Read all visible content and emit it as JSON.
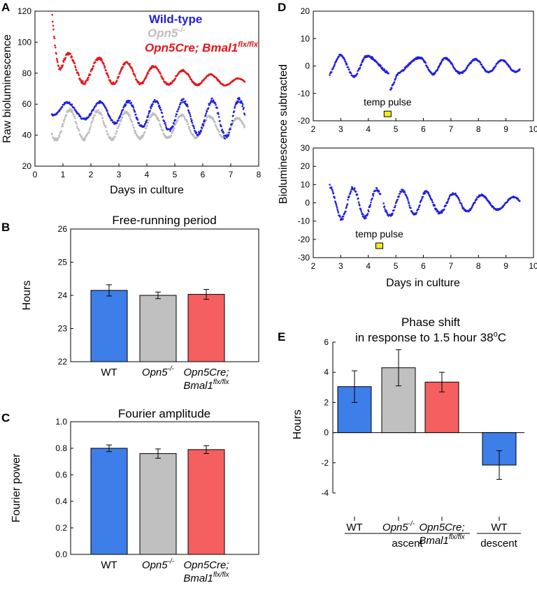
{
  "figure": {
    "colors": {
      "wildtype": "#1f1fe0",
      "opn5": "#bdbdbd",
      "cre": "#e8141b",
      "bar_wt": "#3d7ee8",
      "bar_opn5": "#c0c0c0",
      "bar_cre": "#f55f5f",
      "pulse": "#f2ee1a"
    }
  },
  "chart_data": [
    {
      "id": "A",
      "panel_label": "A",
      "type": "scatter",
      "title": "",
      "xlabel": "Days in culture",
      "ylabel": "Raw bioluminescence",
      "xlim": [
        0,
        8
      ],
      "ylim": [
        20,
        120
      ],
      "xticks": [
        "0",
        "1",
        "2",
        "3",
        "4",
        "5",
        "6",
        "7",
        "8"
      ],
      "yticks": [
        "20",
        "40",
        "60",
        "80",
        "100",
        "120"
      ],
      "legend": [
        {
          "label": "Wild-type",
          "style": "plain"
        },
        {
          "label": "Opn5",
          "sup": "-/-",
          "style": "italic"
        },
        {
          "label": "Opn5Cre; Bmal1",
          "sup": "flx/flx",
          "style": "italic"
        }
      ],
      "series": [
        {
          "name": "Wild-type",
          "x_range": [
            0.6,
            7.5
          ],
          "baseline": [
            57,
            50
          ],
          "amplitude": [
            4,
            13
          ],
          "period_days": 1.0,
          "peaks_at": [
            1.15,
            2.35,
            3.35,
            4.3,
            5.3,
            6.35,
            7.3
          ]
        },
        {
          "name": "Opn5-/-",
          "x_range": [
            0.6,
            7.5
          ],
          "baseline": [
            47,
            45
          ],
          "amplitude": [
            10,
            6
          ],
          "period_days": 1.0,
          "peaks_at": [
            1.25,
            2.25,
            3.25,
            4.25,
            5.25,
            6.25,
            7.25
          ]
        },
        {
          "name": "Opn5Cre; Bmal1flx/flx",
          "x_range": [
            0.6,
            7.5
          ],
          "baseline": [
            84,
            74
          ],
          "amplitude": [
            10,
            2
          ],
          "period_days": 1.0,
          "peaks_at": [
            1.2,
            2.3,
            3.3,
            4.25,
            5.3,
            6.3,
            7.3
          ],
          "initial_transient": [
            [
              0.6,
              121
            ],
            [
              0.8,
              82
            ]
          ]
        }
      ]
    },
    {
      "id": "B",
      "panel_label": "B",
      "type": "bar",
      "title": "Free-running period",
      "ylabel": "Hours",
      "ylim": [
        22,
        26
      ],
      "yticks": [
        "22",
        "23",
        "24",
        "25",
        "26"
      ],
      "categories": [
        {
          "line1": "WT",
          "style": "plain"
        },
        {
          "line1": "Opn5",
          "sup": "-/-",
          "style": "italic"
        },
        {
          "line1": "Opn5Cre;",
          "line2": "Bmal1",
          "sup2": "flx/flx",
          "style": "italic"
        }
      ],
      "values": [
        24.15,
        24.0,
        24.03
      ],
      "errors": [
        0.17,
        0.1,
        0.15
      ]
    },
    {
      "id": "C",
      "panel_label": "C",
      "type": "bar",
      "title": "Fourier amplitude",
      "ylabel": "Fourier power",
      "ylim": [
        0,
        1.0
      ],
      "yticks": [
        "0.0",
        "0.2",
        "0.4",
        "0.6",
        "0.8",
        "1.0"
      ],
      "categories": [
        {
          "line1": "WT",
          "style": "plain"
        },
        {
          "line1": "Opn5",
          "sup": "-/-",
          "style": "italic"
        },
        {
          "line1": "Opn5Cre;",
          "line2": "Bmal1",
          "sup2": "flx/flx",
          "style": "italic"
        }
      ],
      "values": [
        0.8,
        0.76,
        0.79
      ],
      "errors": [
        0.025,
        0.035,
        0.03
      ]
    },
    {
      "id": "D1",
      "panel_label": "D",
      "type": "scatter",
      "ylabel": "Bioluminescence subtracted",
      "xlim": [
        2,
        10
      ],
      "ylim": [
        -20,
        20
      ],
      "xticks": [
        "2",
        "3",
        "4",
        "5",
        "6",
        "7",
        "8",
        "9",
        "10"
      ],
      "yticks": [
        "-20",
        "-10",
        "0",
        "10",
        "20"
      ],
      "annotation": {
        "text": "temp pulse",
        "x": 4.7,
        "y": -17.5
      },
      "series": [
        {
          "name": "trace",
          "x_range": [
            2.6,
            9.5
          ],
          "baseline": 0,
          "amplitude": [
            4,
            2
          ],
          "period_days": 1.0,
          "peaks_at": [
            3.0,
            3.95,
            5.9,
            6.8,
            7.9,
            8.85
          ],
          "gap": [
            4.75,
            4.8
          ],
          "dip_after_gap": -9
        }
      ]
    },
    {
      "id": "D2",
      "panel_label": "",
      "type": "scatter",
      "xlabel": "Days in culture",
      "xlim": [
        2,
        10
      ],
      "ylim": [
        -30,
        30
      ],
      "xticks": [
        "2",
        "3",
        "4",
        "5",
        "6",
        "7",
        "8",
        "9",
        "10"
      ],
      "yticks": [
        "-30",
        "-20",
        "-10",
        "0",
        "10",
        "20",
        "30"
      ],
      "annotation": {
        "text": "temp pulse",
        "x": 4.4,
        "y": -23.5
      },
      "series": [
        {
          "name": "trace",
          "x_range": [
            2.6,
            9.5
          ],
          "baseline": 0,
          "amplitude": [
            9,
            3
          ],
          "period_days": 1.0,
          "peaks_at": [
            2.6,
            3.45,
            4.3,
            5.25,
            6.1,
            7.1,
            8.1,
            9.3
          ],
          "gap": [
            4.45,
            4.55
          ]
        }
      ]
    },
    {
      "id": "E",
      "panel_label": "E",
      "type": "bar",
      "title": "Phase shift",
      "subtitle_pre": "in response to 1.5 hour 38",
      "subtitle_sup": "o",
      "subtitle_post": "C",
      "ylabel": "Hours",
      "ylim": [
        -4,
        6
      ],
      "yticks": [
        "-4",
        "-2",
        "0",
        "2",
        "4",
        "6"
      ],
      "categories": [
        {
          "line1": "WT",
          "style": "plain"
        },
        {
          "line1": "Opn5",
          "sup": "-/-",
          "style": "italic"
        },
        {
          "line1": "Opn5Cre;",
          "line2": "Bmal1",
          "sup2": "flx/flx",
          "style": "italic"
        },
        {
          "line1": "WT",
          "style": "plain"
        }
      ],
      "values": [
        3.05,
        4.3,
        3.35,
        -2.15
      ],
      "errors": [
        1.05,
        1.2,
        0.65,
        0.95
      ],
      "groups": [
        {
          "label": "ascent",
          "bars": [
            0,
            1,
            2
          ]
        },
        {
          "label": "descent",
          "bars": [
            3
          ]
        }
      ]
    }
  ]
}
